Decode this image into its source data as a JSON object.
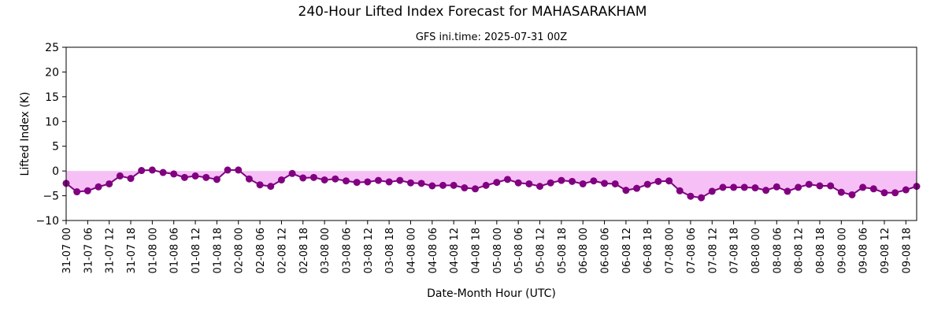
{
  "page": {
    "title": "240-Hour Lifted Index Forecast for MAHASARAKHAM"
  },
  "chart_data": {
    "type": "line",
    "title": "240-Hour Lifted Index Forecast for MAHASARAKHAM",
    "subtitle": "GFS ini.time: 2025-07-31 00Z",
    "xlabel": "Date-Month Hour (UTC)",
    "ylabel": "Lifted Index (K)",
    "ylim": [
      -10,
      25
    ],
    "yticks": [
      25,
      20,
      15,
      10,
      5,
      0,
      -5,
      -10
    ],
    "x_tick_labels": [
      "31-07 00",
      "31-07 06",
      "31-07 12",
      "31-07 18",
      "01-08 00",
      "01-08 06",
      "01-08 12",
      "01-08 18",
      "02-08 00",
      "02-08 06",
      "02-08 12",
      "02-08 18",
      "03-08 00",
      "03-08 06",
      "03-08 12",
      "03-08 18",
      "04-08 00",
      "04-08 06",
      "04-08 12",
      "04-08 18",
      "05-08 00",
      "05-08 06",
      "05-08 12",
      "05-08 18",
      "06-08 00",
      "06-08 06",
      "06-08 12",
      "06-08 18",
      "07-08 00",
      "07-08 06",
      "07-08 12",
      "07-08 18",
      "08-08 00",
      "08-08 06",
      "08-08 12",
      "08-08 18",
      "09-08 00",
      "09-08 06",
      "09-08 12",
      "09-08 18"
    ],
    "x_step_hours": 3,
    "grid": false,
    "fill_below_zero": true,
    "colors": {
      "line": "#800080",
      "fill": "#ee82ee"
    },
    "series": [
      {
        "values": [
          -2.5,
          -4.2,
          -4.0,
          -3.2,
          -2.6,
          -1.0,
          -1.5,
          0.1,
          0.2,
          -0.3,
          -0.6,
          -1.3,
          -1.0,
          -1.3,
          -1.7,
          0.2,
          0.2,
          -1.6,
          -2.8,
          -3.1,
          -1.8,
          -0.5,
          -1.4,
          -1.3,
          -1.8,
          -1.6,
          -2.0,
          -2.3,
          -2.2,
          -1.9,
          -2.2,
          -1.9,
          -2.4,
          -2.5,
          -3.0,
          -2.9,
          -2.9,
          -3.4,
          -3.6,
          -2.9,
          -2.3,
          -1.7,
          -2.4,
          -2.6,
          -3.1,
          -2.4,
          -1.9,
          -2.1,
          -2.6,
          -2.0,
          -2.5,
          -2.6,
          -3.9,
          -3.5,
          -2.7,
          -2.1,
          -2.0,
          -4.0,
          -5.1,
          -5.4,
          -4.1,
          -3.3,
          -3.3,
          -3.3,
          -3.4,
          -3.9,
          -3.2,
          -4.1,
          -3.3,
          -2.7,
          -3.0,
          -3.0,
          -4.3,
          -4.8,
          -3.3,
          -3.6,
          -4.4,
          -4.4,
          -3.8,
          -3.1
        ]
      }
    ]
  }
}
